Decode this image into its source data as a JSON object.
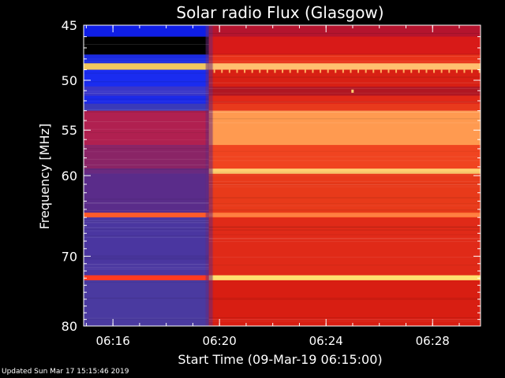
{
  "chart_data": {
    "type": "heatmap",
    "title": "Solar radio Flux (Glasgow)",
    "xlabel": "Start Time (09-Mar-19 06:15:00)",
    "ylabel": "Frequency [MHz]",
    "x_ticks": [
      "06:16",
      "06:20",
      "06:24",
      "06:28"
    ],
    "x_tick_minutes": [
      1,
      5,
      9,
      13
    ],
    "xlim_minutes": [
      -0.1,
      14.8
    ],
    "y_scale": "log",
    "y_ticks": [
      45,
      50,
      55,
      60,
      70,
      80
    ],
    "ylim": [
      45,
      80
    ],
    "transition_minute": 4.6,
    "background_before": "#4a3aa8",
    "background_after": "#dd2412",
    "bands": [
      {
        "f1": 45.0,
        "f2": 46.0,
        "before": "#0f1ee6",
        "after": "#b5142e"
      },
      {
        "f1": 46.0,
        "f2": 47.6,
        "before": "#000000",
        "after": "#d81a18"
      },
      {
        "f1": 47.6,
        "f2": 48.4,
        "before": "#1a2ae0",
        "after": "#e8321a"
      },
      {
        "f1": 48.4,
        "f2": 49.0,
        "before": "#f0c860",
        "after": "#ffc070"
      },
      {
        "f1": 49.0,
        "f2": 50.6,
        "before": "#1a2cf0",
        "after": "#d82014"
      },
      {
        "f1": 50.6,
        "f2": 51.5,
        "before": "#3a36c8",
        "after": "#b01622"
      },
      {
        "f1": 51.5,
        "f2": 52.3,
        "before": "#1c2ae8",
        "after": "#e02818"
      },
      {
        "f1": 52.3,
        "f2": 53.0,
        "before": "#3a3ab8",
        "after": "#e83a1c"
      },
      {
        "f1": 53.0,
        "f2": 56.6,
        "before": "#b02050",
        "after": "#ff9a50"
      },
      {
        "f1": 56.6,
        "f2": 59.2,
        "before": "#8a2466",
        "after": "#f04420"
      },
      {
        "f1": 59.2,
        "f2": 59.8,
        "before": "#6a2a80",
        "after": "#ffd070"
      },
      {
        "f1": 59.8,
        "f2": 64.4,
        "before": "#5a2c8a",
        "after": "#e83a1a"
      },
      {
        "f1": 64.4,
        "f2": 65.0,
        "before": "#ff5a2a",
        "after": "#ff7a3a"
      },
      {
        "f1": 65.0,
        "f2": 72.6,
        "before": "#4a36a0",
        "after": "#e02a18"
      },
      {
        "f1": 72.6,
        "f2": 73.3,
        "before": "#ff3a20",
        "after": "#ffe070"
      },
      {
        "f1": 73.3,
        "f2": 80.0,
        "before": "#4a3aa0",
        "after": "#d81e12"
      }
    ],
    "footer": "Updated Sun Mar 17 15:15:46 2019"
  }
}
